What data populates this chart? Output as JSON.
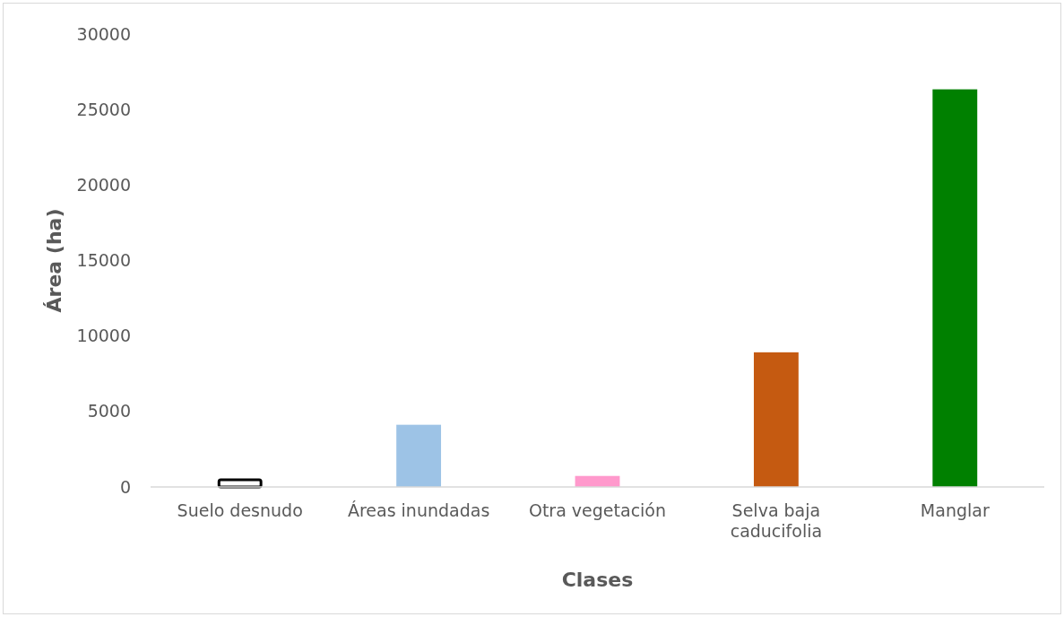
{
  "chart_data": {
    "type": "bar",
    "xlabel": "Clases",
    "ylabel": "Área (ha)",
    "categories": [
      "Suelo desnudo",
      "Áreas inundadas",
      "Otra vegetación",
      "Selva baja caducifolia",
      "Manglar"
    ],
    "values": [
      480,
      4120,
      730,
      8920,
      26340
    ],
    "colors": [
      "#ffffff",
      "#9dc3e6",
      "#ff99cc",
      "#c55a11",
      "#008000"
    ],
    "ylim": [
      0,
      30000
    ],
    "yticks": [
      0,
      5000,
      10000,
      15000,
      20000,
      25000,
      30000
    ],
    "grid": false
  }
}
